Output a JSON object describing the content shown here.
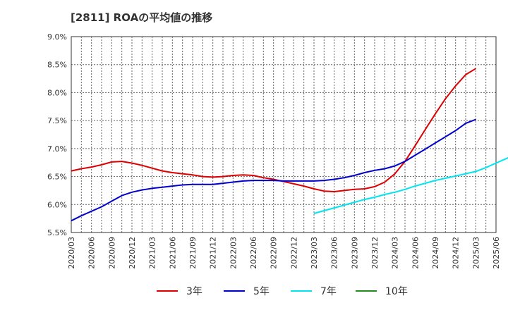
{
  "chart_data": {
    "type": "line",
    "title": "[2811]  ROAの平均値の推移",
    "xlabel": "",
    "ylabel": "",
    "ylim": [
      5.5,
      9.0
    ],
    "y_ticks": [
      5.5,
      6.0,
      6.5,
      7.0,
      7.5,
      8.0,
      8.5,
      9.0
    ],
    "y_tick_labels": [
      "5.5%",
      "6.0%",
      "6.5%",
      "7.0%",
      "7.5%",
      "8.0%",
      "8.5%",
      "9.0%"
    ],
    "x_tick_labels": [
      "2020/03",
      "2020/06",
      "2020/09",
      "2020/12",
      "2021/03",
      "2021/06",
      "2021/09",
      "2021/12",
      "2022/03",
      "2022/06",
      "2022/09",
      "2022/12",
      "2023/03",
      "2023/06",
      "2023/09",
      "2023/12",
      "2024/03",
      "2024/06",
      "2024/09",
      "2024/12",
      "2025/03",
      "2025/06"
    ],
    "grid": true,
    "legend_position": "bottom",
    "series": [
      {
        "name": "3年",
        "color": "#dd0000",
        "start_index": 0,
        "values": [
          6.6,
          6.64,
          6.67,
          6.71,
          6.76,
          6.77,
          6.74,
          6.7,
          6.65,
          6.6,
          6.57,
          6.55,
          6.53,
          6.5,
          6.49,
          6.5,
          6.52,
          6.53,
          6.52,
          6.48,
          6.45,
          6.41,
          6.37,
          6.33,
          6.28,
          6.24,
          6.23,
          6.25,
          6.27,
          6.28,
          6.32,
          6.4,
          6.55,
          6.77,
          7.05,
          7.34,
          7.62,
          7.89,
          8.12,
          8.32,
          8.43
        ]
      },
      {
        "name": "5年",
        "color": "#0000cc",
        "start_index": 0,
        "values": [
          5.71,
          5.8,
          5.88,
          5.96,
          6.06,
          6.16,
          6.22,
          6.26,
          6.29,
          6.31,
          6.33,
          6.35,
          6.36,
          6.36,
          6.36,
          6.38,
          6.4,
          6.42,
          6.43,
          6.43,
          6.43,
          6.42,
          6.42,
          6.42,
          6.42,
          6.43,
          6.45,
          6.48,
          6.52,
          6.57,
          6.61,
          6.64,
          6.69,
          6.77,
          6.88,
          6.99,
          7.1,
          7.21,
          7.32,
          7.45,
          7.52
        ]
      },
      {
        "name": "7年",
        "color": "#00e5ee",
        "start_index": 24,
        "values": [
          5.84,
          5.89,
          5.94,
          5.99,
          6.04,
          6.09,
          6.13,
          6.18,
          6.22,
          6.27,
          6.33,
          6.38,
          6.43,
          6.47,
          6.51,
          6.55,
          6.59,
          6.66,
          6.74,
          6.82,
          6.9,
          6.98,
          7.06,
          7.15,
          7.23,
          7.28
        ]
      },
      {
        "name": "10年",
        "color": "#228b22",
        "start_index": 0,
        "values": []
      }
    ]
  }
}
